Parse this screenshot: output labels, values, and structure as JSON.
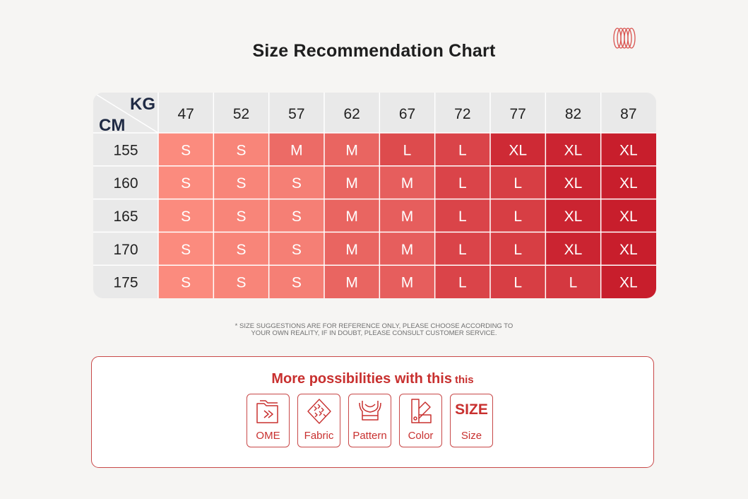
{
  "title": "Size Recommendation Chart",
  "chart_data": {
    "type": "table",
    "corner": {
      "top": "KG",
      "bottom": "CM"
    },
    "columns": [
      "47",
      "52",
      "57",
      "62",
      "67",
      "72",
      "77",
      "82",
      "87"
    ],
    "rows": [
      {
        "label": "155",
        "values": [
          "S",
          "S",
          "M",
          "M",
          "L",
          "L",
          "XL",
          "XL",
          "XL"
        ]
      },
      {
        "label": "160",
        "values": [
          "S",
          "S",
          "S",
          "M",
          "M",
          "L",
          "L",
          "XL",
          "XL"
        ]
      },
      {
        "label": "165",
        "values": [
          "S",
          "S",
          "S",
          "M",
          "M",
          "L",
          "L",
          "XL",
          "XL"
        ]
      },
      {
        "label": "170",
        "values": [
          "S",
          "S",
          "S",
          "M",
          "M",
          "L",
          "L",
          "XL",
          "XL"
        ]
      },
      {
        "label": "175",
        "values": [
          "S",
          "S",
          "S",
          "M",
          "M",
          "L",
          "L",
          "L",
          "XL"
        ]
      }
    ],
    "colors": {
      "header_bg": "#e9e9e9",
      "grid_line": "#ffffff",
      "cell_fill_light": "#fb8b7e",
      "cell_fill_dark": "#c81e2c",
      "cell_text": "#ffffff",
      "header_text": "#222222"
    }
  },
  "disclaimer": {
    "line1": "* SIZE SUGGESTIONS ARE FOR REFERENCE ONLY, PLEASE CHOOSE ACCORDING TO",
    "line2": "YOUR OWN REALITY, IF IN DOUBT, PLEASE CONSULT CUSTOMER SERVICE."
  },
  "promo": {
    "title": "More possibilities with this",
    "title_tail": "this",
    "accent": "#c8302f",
    "items": [
      {
        "icon": "folder-icon",
        "label": "OME"
      },
      {
        "icon": "fabric-icon",
        "label": "Fabric"
      },
      {
        "icon": "garment-pattern-icon",
        "label": "Pattern"
      },
      {
        "icon": "color-swatch-icon",
        "label": "Color"
      },
      {
        "icon": "size-text-icon",
        "label": "Size",
        "word": "SIZE"
      }
    ]
  }
}
